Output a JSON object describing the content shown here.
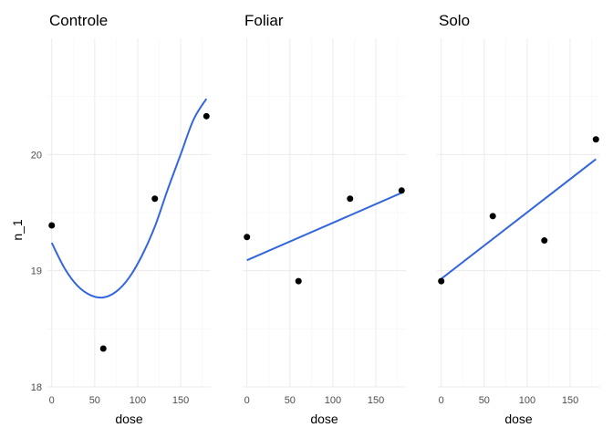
{
  "chart_data": {
    "type": "scatter",
    "ylabel": "n_1",
    "xlabel": "dose",
    "ylim": [
      18,
      21
    ],
    "yticks": [
      18,
      19,
      20
    ],
    "xlim": [
      -5,
      185
    ],
    "xticks": [
      0,
      50,
      100,
      150
    ],
    "grid": true,
    "fit_color": "#3366dd",
    "point_color": "#000000",
    "panels": [
      {
        "title": "Controle",
        "fit": "quadratic",
        "points": [
          {
            "x": 0,
            "y": 19.39
          },
          {
            "x": 60,
            "y": 18.33
          },
          {
            "x": 120,
            "y": 19.62
          },
          {
            "x": 180,
            "y": 20.33
          }
        ],
        "fit_curve": [
          {
            "x": 0,
            "y": 19.24
          },
          {
            "x": 15,
            "y": 19.02
          },
          {
            "x": 30,
            "y": 18.87
          },
          {
            "x": 45,
            "y": 18.79
          },
          {
            "x": 60,
            "y": 18.77
          },
          {
            "x": 75,
            "y": 18.82
          },
          {
            "x": 90,
            "y": 18.94
          },
          {
            "x": 105,
            "y": 19.13
          },
          {
            "x": 120,
            "y": 19.38
          },
          {
            "x": 135,
            "y": 19.7
          },
          {
            "x": 150,
            "y": 20.0
          },
          {
            "x": 165,
            "y": 20.3
          },
          {
            "x": 180,
            "y": 20.48
          }
        ]
      },
      {
        "title": "Foliar",
        "fit": "linear",
        "points": [
          {
            "x": 0,
            "y": 19.29
          },
          {
            "x": 60,
            "y": 18.91
          },
          {
            "x": 120,
            "y": 19.62
          },
          {
            "x": 180,
            "y": 19.69
          }
        ],
        "fit_curve": [
          {
            "x": 0,
            "y": 19.09
          },
          {
            "x": 180,
            "y": 19.67
          }
        ]
      },
      {
        "title": "Solo",
        "fit": "linear",
        "points": [
          {
            "x": 0,
            "y": 18.91
          },
          {
            "x": 60,
            "y": 19.47
          },
          {
            "x": 120,
            "y": 19.26
          },
          {
            "x": 180,
            "y": 20.13
          }
        ],
        "fit_curve": [
          {
            "x": 0,
            "y": 18.93
          },
          {
            "x": 180,
            "y": 19.96
          }
        ]
      }
    ]
  }
}
